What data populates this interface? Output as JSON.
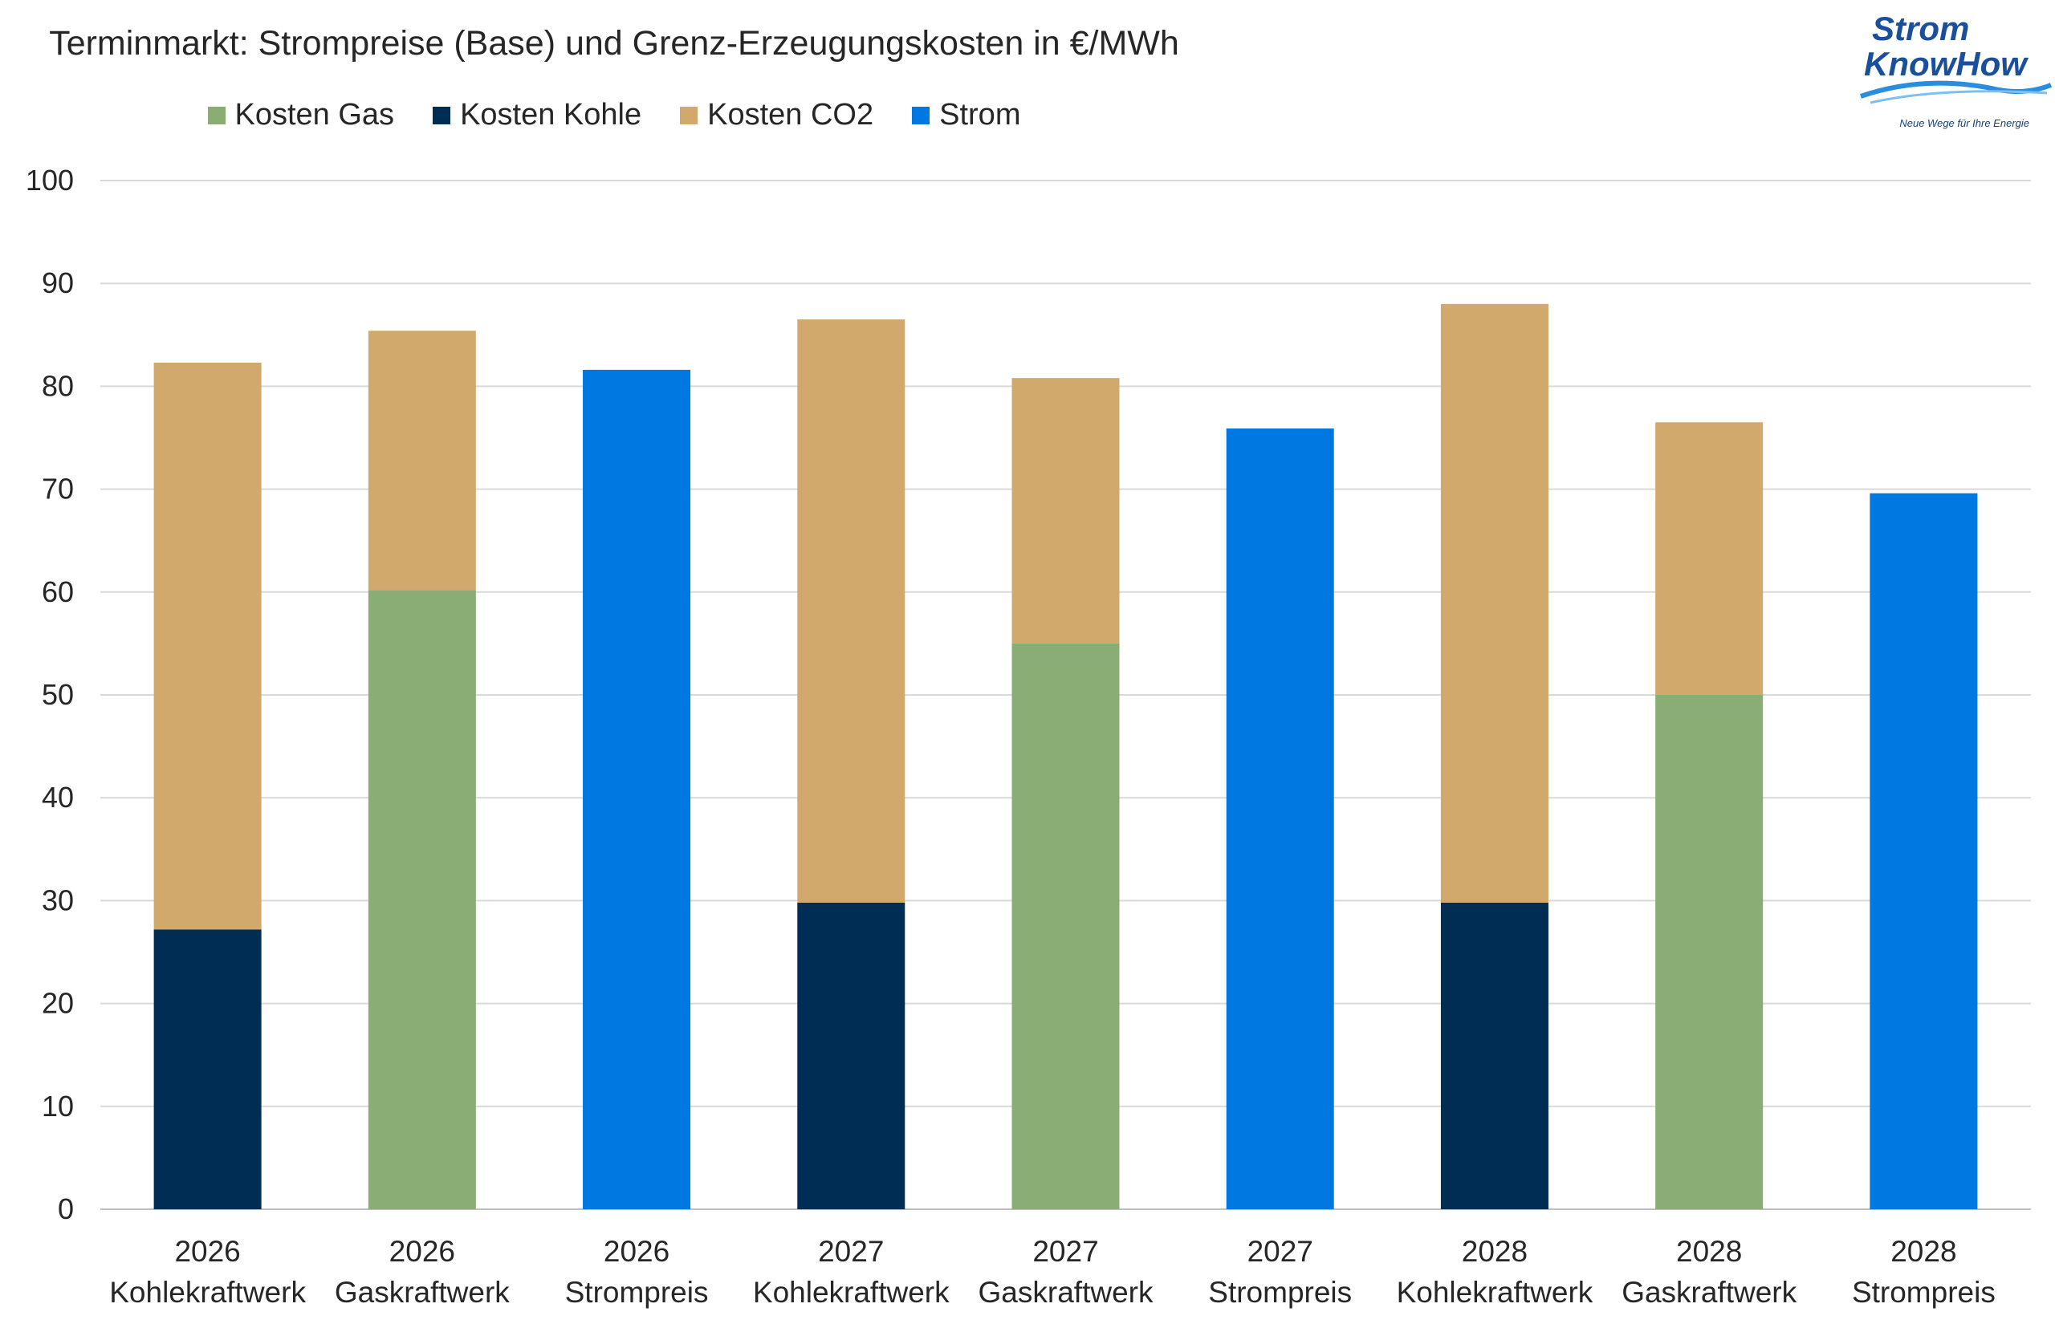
{
  "chart_data": {
    "type": "bar",
    "stacked": true,
    "title": "Terminmarkt: Strompreise (Base) und Grenz-Erzeugungskosten in €/MWh",
    "ylim": [
      0,
      100
    ],
    "yticks": [
      0,
      10,
      20,
      30,
      40,
      50,
      60,
      70,
      80,
      90,
      100
    ],
    "grid": true,
    "legend_position": "top",
    "categories": [
      {
        "year": "2026",
        "label": "Kohlekraftwerk"
      },
      {
        "year": "2026",
        "label": "Gaskraftwerk"
      },
      {
        "year": "2026",
        "label": "Strompreis"
      },
      {
        "year": "2027",
        "label": "Kohlekraftwerk"
      },
      {
        "year": "2027",
        "label": "Gaskraftwerk"
      },
      {
        "year": "2027",
        "label": "Strompreis"
      },
      {
        "year": "2028",
        "label": "Kohlekraftwerk"
      },
      {
        "year": "2028",
        "label": "Gaskraftwerk"
      },
      {
        "year": "2028",
        "label": "Strompreis"
      }
    ],
    "series": [
      {
        "name": "Kosten Gas",
        "color": "#8aad74",
        "values": [
          0,
          60.2,
          0,
          0,
          55.0,
          0,
          0,
          50.0,
          0
        ]
      },
      {
        "name": "Kosten Kohle",
        "color": "#002d53",
        "values": [
          27.2,
          0,
          0,
          29.8,
          0,
          0,
          29.8,
          0,
          0
        ]
      },
      {
        "name": "Kosten CO2",
        "color": "#d1a96c",
        "values": [
          55.1,
          25.2,
          0,
          56.7,
          25.8,
          0,
          58.2,
          26.5,
          0
        ]
      },
      {
        "name": "Strom",
        "color": "#0078e1",
        "values": [
          0,
          0,
          81.6,
          0,
          0,
          75.9,
          0,
          0,
          69.6
        ]
      }
    ]
  },
  "logo": {
    "line1": "Strom",
    "line2": "KnowHow",
    "tagline": "Neue Wege für Ihre Energie"
  }
}
